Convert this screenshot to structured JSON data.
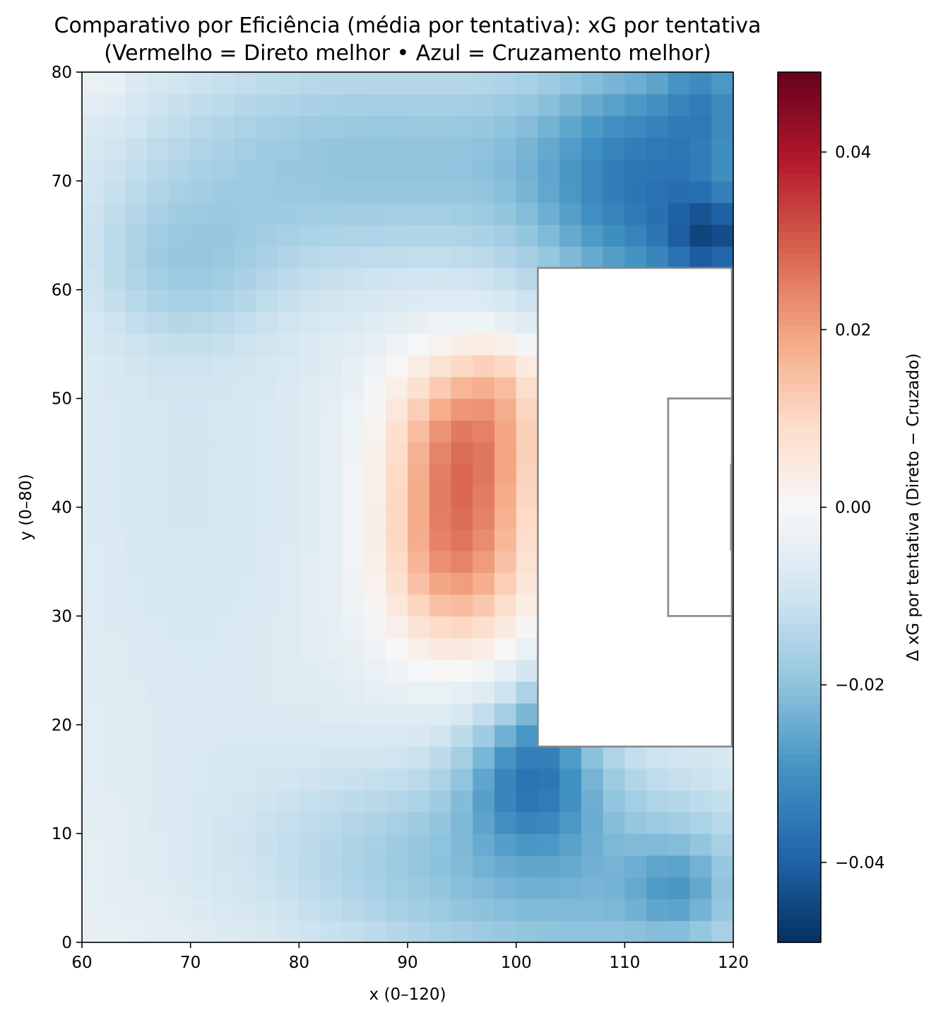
{
  "chart_data": {
    "type": "heatmap",
    "title": "Comparativo por Eficiência (média por tentativa): xG por tentativa",
    "subtitle": "(Vermelho = Direto melhor • Azul = Cruzamento melhor)",
    "xlabel": "x (0–120)",
    "ylabel": "y (0–80)",
    "xlim": [
      60,
      120
    ],
    "ylim": [
      0,
      80
    ],
    "x_ticks": [
      "60",
      "70",
      "80",
      "90",
      "100",
      "110",
      "120"
    ],
    "y_ticks": [
      "0",
      "10",
      "20",
      "30",
      "40",
      "50",
      "60",
      "70",
      "80"
    ],
    "colorbar": {
      "label": "Δ xG por tentativa (Direto − Cruzado)",
      "range": [
        -0.049,
        0.049
      ],
      "ticks": [
        "−0.04",
        "−0.02",
        "0.00",
        "0.02",
        "0.04"
      ],
      "tick_values": [
        -0.04,
        -0.02,
        0.0,
        0.02,
        0.04
      ],
      "colormap": "RdBu_r",
      "colors": [
        "#053061",
        "#2166ac",
        "#4393c3",
        "#92c5de",
        "#d1e5f0",
        "#f7f7f7",
        "#fddbc7",
        "#f4a582",
        "#d6604d",
        "#b2182b",
        "#67001f"
      ]
    },
    "grid": false,
    "cell_size": 2,
    "overlays": {
      "penalty_area": {
        "x": [
          102,
          120
        ],
        "y": [
          18,
          62
        ],
        "color": "#888888"
      },
      "six_yard_box": {
        "x": [
          114,
          120
        ],
        "y": [
          30,
          50
        ],
        "color": "#888888"
      },
      "goal": {
        "x": 120,
        "y": [
          36,
          44
        ],
        "color": "#888888"
      }
    },
    "value_fields": [
      {
        "comment": "approximate smoothed field reconstruction"
      }
    ]
  }
}
